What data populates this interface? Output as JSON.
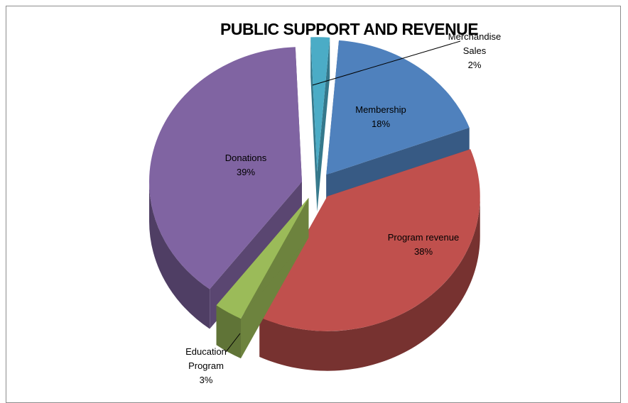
{
  "chart_data": {
    "type": "pie",
    "title": "PUBLIC SUPPORT AND REVENUE",
    "categories": [
      "Merchandise Sales",
      "Membership",
      "Program revenue",
      "Education Program",
      "Donations"
    ],
    "values": [
      2,
      18,
      38,
      3,
      39
    ],
    "colors": [
      "#4bacc6",
      "#4f81bd",
      "#c0504d",
      "#9bbb59",
      "#8064a2"
    ],
    "legend": "none",
    "data_labels": [
      {
        "lines": [
          "Merchandise",
          "Sales",
          "2%"
        ]
      },
      {
        "lines": [
          "Membership",
          "18%"
        ]
      },
      {
        "lines": [
          "Program revenue",
          "38%"
        ]
      },
      {
        "lines": [
          "Education",
          "Program",
          "3%"
        ]
      },
      {
        "lines": [
          "Donations",
          "39%"
        ]
      }
    ]
  }
}
